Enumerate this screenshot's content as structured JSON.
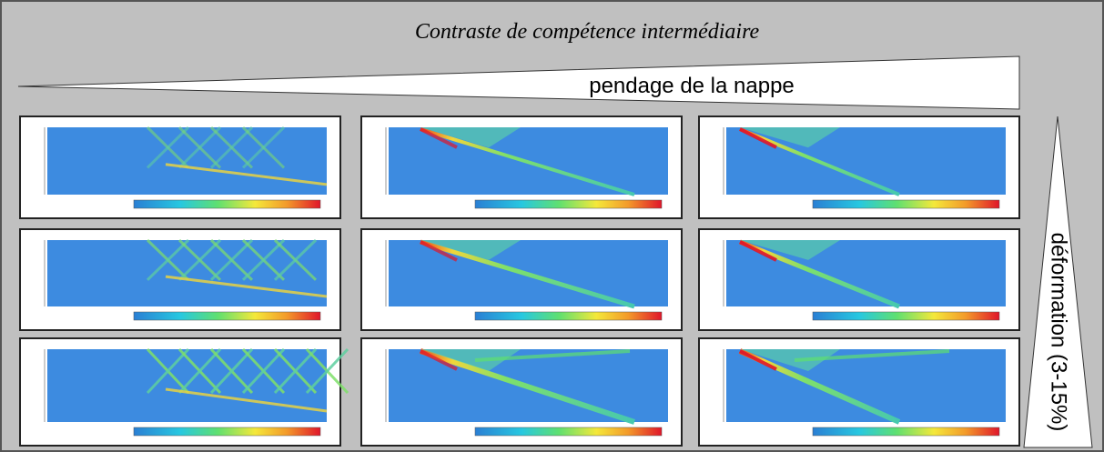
{
  "header": {
    "title": "Contraste de compétence intermédiaire"
  },
  "wedges": {
    "horizontal": "pendage de la nappe",
    "vertical": "déformation (3-15%)"
  }
}
